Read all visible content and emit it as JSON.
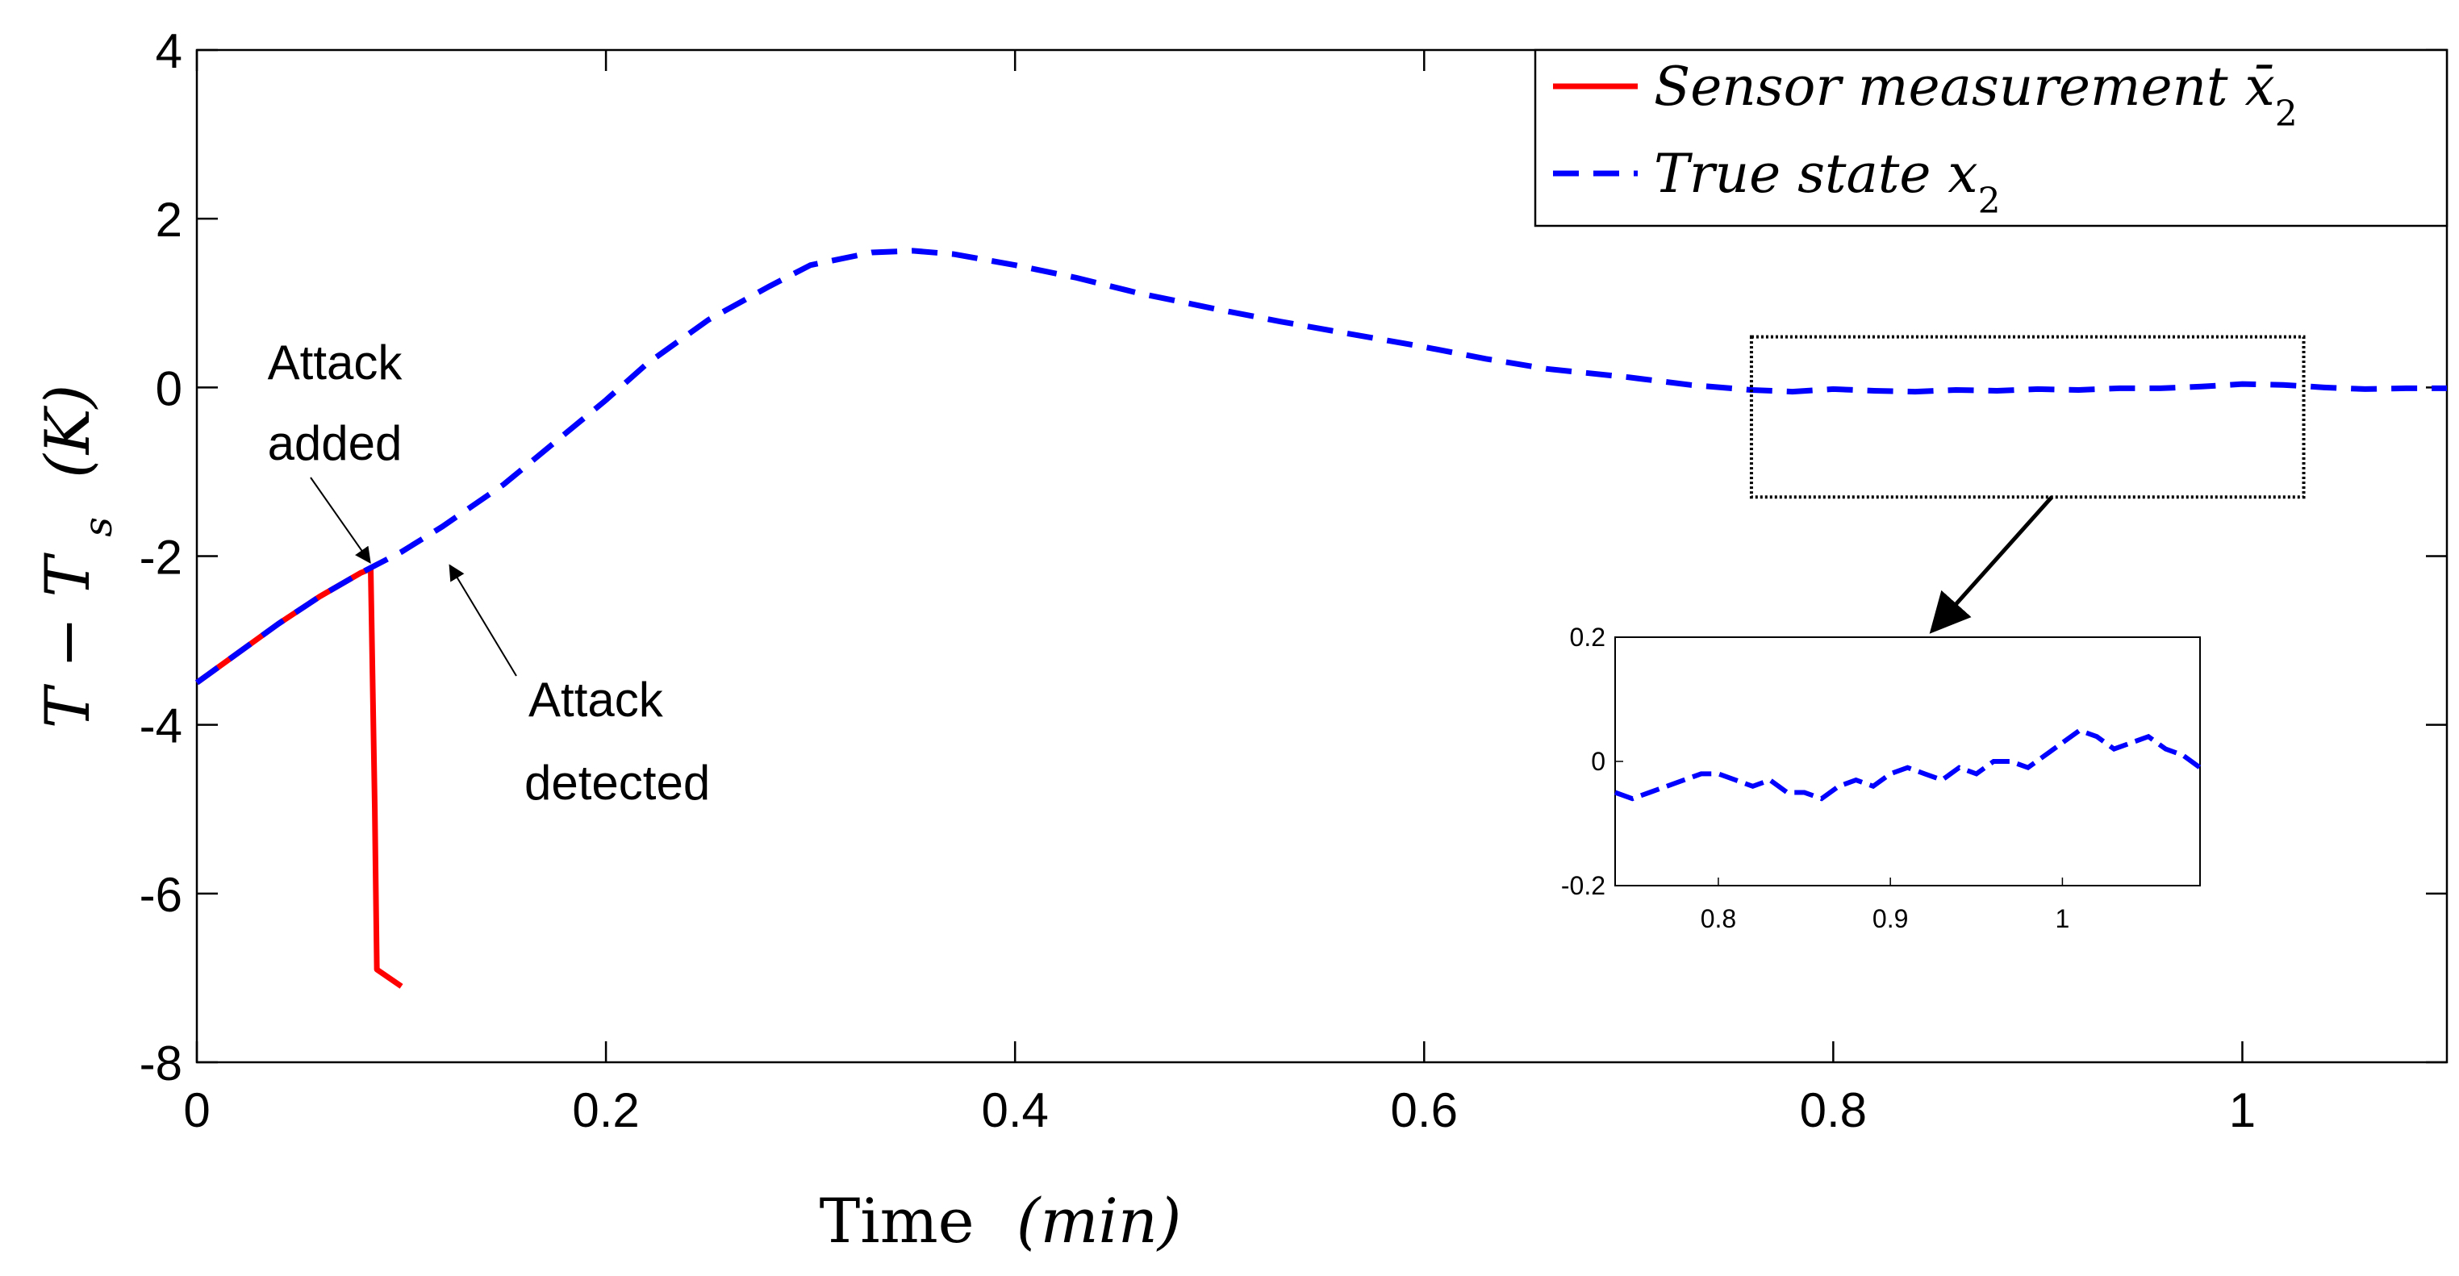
{
  "chart_data": {
    "type": "line",
    "xlabel_main": "Time",
    "xlabel_unit": "(min)",
    "ylabel": "T − T_s (K)",
    "ylabel_parts": {
      "main": "T − T",
      "sub": "s",
      "unit": "(K)"
    },
    "xlim": [
      0,
      1.1
    ],
    "ylim": [
      -8,
      4
    ],
    "x_ticks": [
      0,
      0.2,
      0.4,
      0.6,
      0.8,
      1
    ],
    "x_tick_labels": [
      "0",
      "0.2",
      "0.4",
      "0.6",
      "0.8",
      "1"
    ],
    "y_ticks": [
      -8,
      -6,
      -4,
      -2,
      0,
      2,
      4
    ],
    "y_tick_labels": [
      "-8",
      "-6",
      "-4",
      "-2",
      "0",
      "2",
      "4"
    ],
    "legend": {
      "position": "top-right",
      "entries": [
        {
          "label": "Sensor measurement x̄",
          "subscript": "2"
        },
        {
          "label": "True state x",
          "subscript": "2"
        }
      ]
    },
    "series": [
      {
        "name": "Sensor measurement x̄2",
        "color": "#ff0000",
        "style": "solid",
        "x": [
          0,
          0.02,
          0.04,
          0.06,
          0.08,
          0.085,
          0.087,
          0.088,
          0.1
        ],
        "y": [
          -3.5,
          -3.15,
          -2.8,
          -2.48,
          -2.2,
          -2.15,
          -5.0,
          -6.9,
          -7.1
        ]
      },
      {
        "name": "True state x2",
        "color": "#0000ff",
        "style": "dashed",
        "x": [
          0,
          0.02,
          0.04,
          0.06,
          0.08,
          0.1,
          0.12,
          0.15,
          0.18,
          0.2,
          0.22,
          0.25,
          0.28,
          0.3,
          0.33,
          0.35,
          0.37,
          0.4,
          0.43,
          0.46,
          0.5,
          0.53,
          0.56,
          0.6,
          0.63,
          0.66,
          0.7,
          0.73,
          0.76,
          0.78,
          0.8,
          0.82,
          0.84,
          0.86,
          0.88,
          0.9,
          0.92,
          0.94,
          0.96,
          0.98,
          1.0,
          1.02,
          1.04,
          1.06,
          1.08,
          1.1
        ],
        "y": [
          -3.5,
          -3.15,
          -2.8,
          -2.48,
          -2.2,
          -1.95,
          -1.65,
          -1.15,
          -0.55,
          -0.15,
          0.28,
          0.8,
          1.2,
          1.45,
          1.6,
          1.62,
          1.58,
          1.45,
          1.3,
          1.12,
          0.92,
          0.78,
          0.65,
          0.48,
          0.34,
          0.22,
          0.12,
          0.03,
          -0.03,
          -0.05,
          -0.02,
          -0.04,
          -0.05,
          -0.03,
          -0.04,
          -0.02,
          -0.03,
          -0.01,
          -0.01,
          0.01,
          0.04,
          0.03,
          0.0,
          -0.02,
          -0.01,
          -0.01
        ]
      }
    ],
    "annotations": [
      {
        "text_lines": [
          "Attack",
          "added"
        ],
        "target": [
          0.087,
          -2.15
        ]
      },
      {
        "text_lines": [
          "Attack",
          "detected"
        ],
        "target": [
          0.115,
          -1.9
        ]
      }
    ],
    "zoom_box": {
      "xlim": [
        0.76,
        1.03
      ],
      "ylim": [
        -1.3,
        0.6
      ]
    },
    "inset": {
      "xlim": [
        0.74,
        1.08
      ],
      "ylim": [
        -0.2,
        0.2
      ],
      "x_ticks": [
        0.8,
        0.9,
        1
      ],
      "x_tick_labels": [
        "0.8",
        "0.9",
        "1"
      ],
      "y_ticks": [
        -0.2,
        0,
        0.2
      ],
      "y_tick_labels": [
        "-0.2",
        "0",
        "0.2"
      ],
      "series": {
        "name": "True state x2 (zoom)",
        "color": "#0000ff",
        "style": "dashed",
        "x": [
          0.74,
          0.75,
          0.76,
          0.77,
          0.78,
          0.79,
          0.8,
          0.81,
          0.82,
          0.83,
          0.84,
          0.85,
          0.86,
          0.87,
          0.88,
          0.89,
          0.9,
          0.91,
          0.92,
          0.93,
          0.94,
          0.95,
          0.96,
          0.97,
          0.98,
          0.99,
          1.0,
          1.01,
          1.02,
          1.03,
          1.04,
          1.05,
          1.06,
          1.07,
          1.08
        ],
        "y": [
          -0.05,
          -0.06,
          -0.05,
          -0.04,
          -0.03,
          -0.02,
          -0.02,
          -0.03,
          -0.04,
          -0.03,
          -0.05,
          -0.05,
          -0.06,
          -0.04,
          -0.03,
          -0.04,
          -0.02,
          -0.01,
          -0.02,
          -0.03,
          -0.01,
          -0.02,
          0.0,
          0.0,
          -0.01,
          0.01,
          0.03,
          0.05,
          0.04,
          0.02,
          0.03,
          0.04,
          0.02,
          0.01,
          -0.01
        ]
      }
    }
  }
}
